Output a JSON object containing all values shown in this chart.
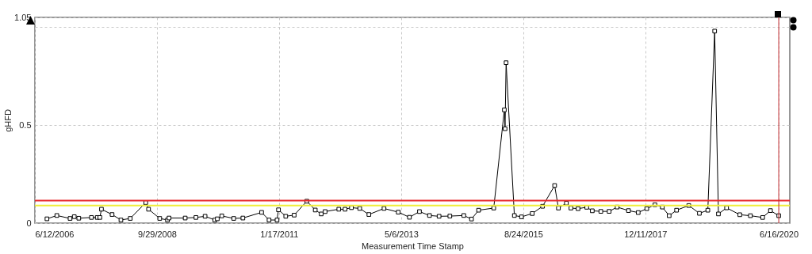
{
  "chart_data": {
    "type": "line",
    "xlabel": "Measurement Time Stamp",
    "ylabel": "gHFD",
    "xlim": [
      "2006-06-12",
      "2020-08-31"
    ],
    "xticks": [
      {
        "value": "2006-06-12",
        "label": "6/12/2006"
      },
      {
        "value": "2008-09-29",
        "label": "9/29/2008"
      },
      {
        "value": "2011-01-17",
        "label": "1/17/2011"
      },
      {
        "value": "2013-05-06",
        "label": "5/6/2013"
      },
      {
        "value": "2015-08-24",
        "label": "8/24/2015"
      },
      {
        "value": "2017-12-11",
        "label": "12/11/2017"
      },
      {
        "value": "2020-06-16",
        "label": "6/16/2020"
      }
    ],
    "ylim": [
      0,
      1.05
    ],
    "yticks": [
      0,
      0.5,
      {
        "value": 1,
        "label": null
      },
      1.05
    ],
    "grid": true,
    "marker": "square",
    "line_style": "solid",
    "x": [
      "2006-09-03",
      "2006-11-10",
      "2007-02-09",
      "2007-03-10",
      "2007-04-10",
      "2007-07-06",
      "2007-08-15",
      "2007-09-02",
      "2007-09-13",
      "2007-11-25",
      "2008-01-25",
      "2008-03-29",
      "2008-07-14",
      "2008-08-02",
      "2008-10-18",
      "2008-12-10",
      "2008-12-21",
      "2009-04-11",
      "2009-06-24",
      "2009-08-26",
      "2009-11-01",
      "2009-11-18",
      "2009-12-19",
      "2010-03-11",
      "2010-05-13",
      "2010-09-19",
      "2010-11-09",
      "2011-01-03",
      "2011-01-13",
      "2011-03-04",
      "2011-05-01",
      "2011-07-27",
      "2011-09-23",
      "2011-11-03",
      "2011-11-30",
      "2012-03-03",
      "2012-04-15",
      "2012-05-29",
      "2012-07-25",
      "2012-09-26",
      "2013-01-08",
      "2013-04-16",
      "2013-07-02",
      "2013-09-09",
      "2013-11-17",
      "2014-01-22",
      "2014-04-06",
      "2014-07-11",
      "2014-09-02",
      "2014-10-21",
      "2015-02-02",
      "2015-04-16",
      "2015-04-21",
      "2015-04-28",
      "2015-06-24",
      "2015-08-12",
      "2015-10-25",
      "2016-01-04",
      "2016-03-27",
      "2016-04-22",
      "2016-06-16",
      "2016-07-17",
      "2016-09-04",
      "2016-11-03",
      "2016-12-11",
      "2017-02-08",
      "2017-04-06",
      "2017-05-31",
      "2017-08-17",
      "2017-10-23",
      "2017-12-21",
      "2018-02-15",
      "2018-04-07",
      "2018-05-24",
      "2018-07-14",
      "2018-10-06",
      "2018-12-18",
      "2019-02-14",
      "2019-04-02",
      "2019-04-28",
      "2019-06-23",
      "2019-09-22",
      "2019-12-04",
      "2020-02-26",
      "2020-04-20",
      "2020-06-16"
    ],
    "series": [
      {
        "color": "#000000",
        "values": [
          0.022,
          0.039,
          0.024,
          0.033,
          0.025,
          0.029,
          0.029,
          0.029,
          0.071,
          0.044,
          0.016,
          0.024,
          0.105,
          0.071,
          0.024,
          0.016,
          0.026,
          0.026,
          0.029,
          0.035,
          0.016,
          0.022,
          0.037,
          0.024,
          0.026,
          0.055,
          0.016,
          0.016,
          0.068,
          0.035,
          0.041,
          0.112,
          0.067,
          0.047,
          0.059,
          0.071,
          0.071,
          0.079,
          0.075,
          0.044,
          0.075,
          0.056,
          0.03,
          0.059,
          0.039,
          0.035,
          0.036,
          0.039,
          0.021,
          0.066,
          0.077,
          0.578,
          0.482,
          0.819,
          0.039,
          0.032,
          0.049,
          0.086,
          0.192,
          0.077,
          0.102,
          0.077,
          0.074,
          0.081,
          0.063,
          0.06,
          0.06,
          0.082,
          0.064,
          0.054,
          0.074,
          0.094,
          0.082,
          0.038,
          0.066,
          0.09,
          0.05,
          0.066,
          0.98,
          0.047,
          0.078,
          0.043,
          0.038,
          0.029,
          0.064,
          0.038
        ]
      }
    ],
    "ref_lines": [
      {
        "axis": "y",
        "value": 0.115,
        "label": null,
        "color": "#e8262a"
      },
      {
        "axis": "y",
        "value": 0.09,
        "label": null,
        "color": "#f0ee3a"
      },
      {
        "axis": "x",
        "value": "2020-06-16",
        "label": null,
        "color": "#c0282c"
      }
    ]
  }
}
